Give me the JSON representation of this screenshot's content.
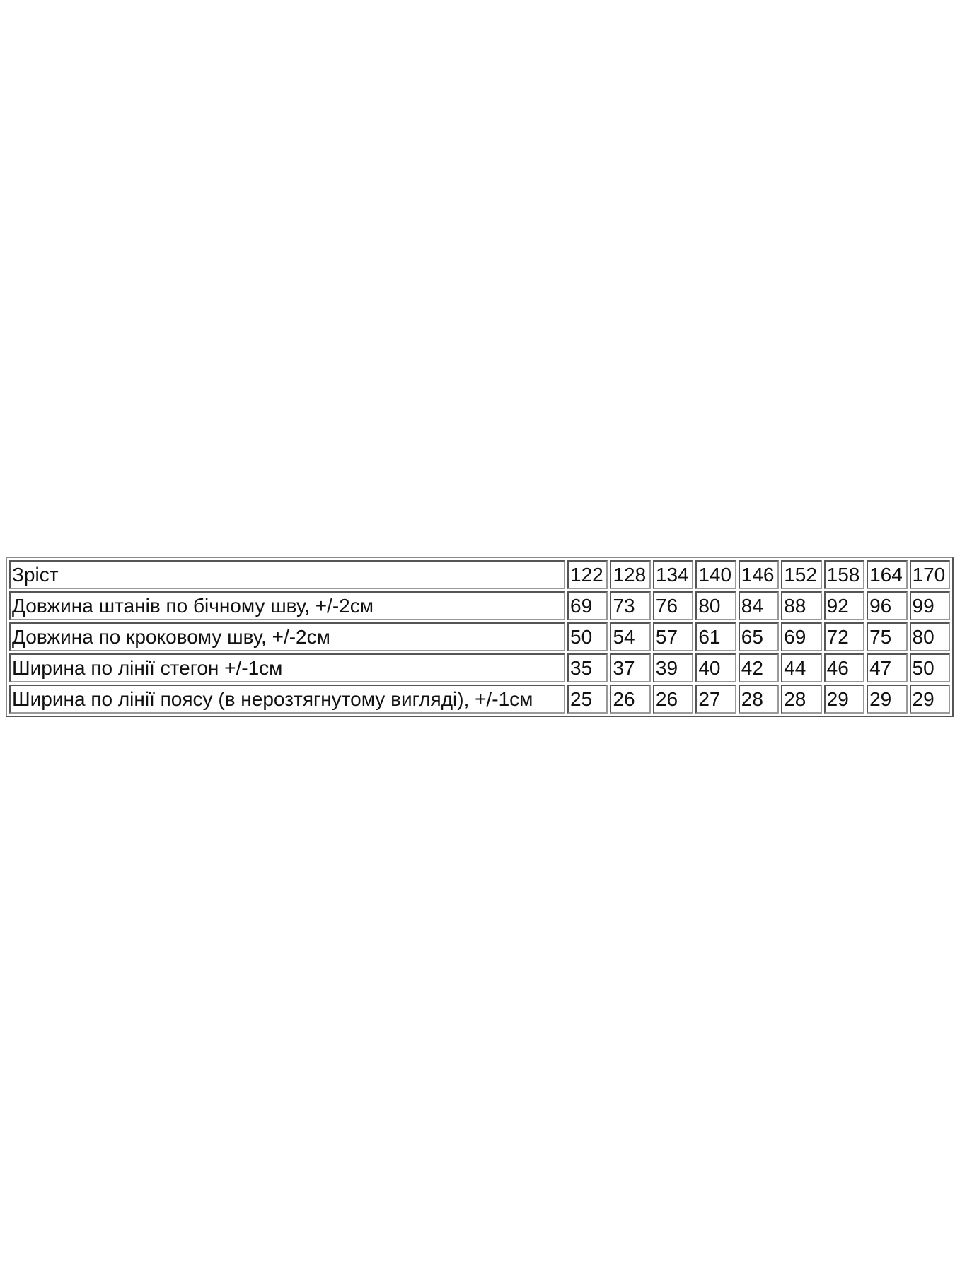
{
  "table": {
    "header": {
      "label": "Зріст",
      "values": [
        "122",
        "128",
        "134",
        "140",
        "146",
        "152",
        "158",
        "164",
        "170"
      ]
    },
    "rows": [
      {
        "label": "Довжина штанів по бічному шву, +/-2см",
        "values": [
          "69",
          "73",
          "76",
          "80",
          "84",
          "88",
          "92",
          "96",
          "99"
        ]
      },
      {
        "label": "Довжина по кроковому шву, +/-2см",
        "values": [
          "50",
          "54",
          "57",
          "61",
          "65",
          "69",
          "72",
          "75",
          "80"
        ]
      },
      {
        "label": "Ширина по лінії стегон +/-1см",
        "values": [
          "35",
          "37",
          "39",
          "40",
          "42",
          "44",
          "46",
          "47",
          "50"
        ]
      },
      {
        "label": "Ширина по лінії поясу (в нерозтягнутому вигляді), +/-1см",
        "values": [
          "25",
          "26",
          "26",
          "27",
          "28",
          "28",
          "29",
          "29",
          "29"
        ]
      }
    ]
  }
}
